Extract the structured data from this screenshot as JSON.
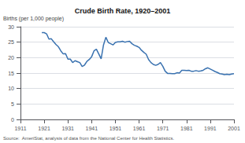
{
  "chart_data": {
    "type": "line",
    "title": "Crude Birth Rate, 1920–2001",
    "ylabel": "Births (per 1,000 people)",
    "annotations": [
      "Source:  AmeriStat, analysis of data from the National Center for Health Statistics."
    ],
    "color": "#3a72b0",
    "grid": true,
    "xlim": [
      1911,
      2001
    ],
    "xticks": [
      1911,
      1921,
      1931,
      1941,
      1951,
      1961,
      1971,
      1981,
      1991,
      2001
    ],
    "ylim": [
      0,
      30
    ],
    "yticks": [
      0,
      5,
      10,
      15,
      20,
      25,
      30
    ],
    "x": [
      1920,
      1921,
      1922,
      1923,
      1924,
      1925,
      1926,
      1927,
      1928,
      1929,
      1930,
      1931,
      1932,
      1933,
      1934,
      1935,
      1936,
      1937,
      1938,
      1939,
      1940,
      1941,
      1942,
      1943,
      1944,
      1945,
      1946,
      1947,
      1948,
      1949,
      1950,
      1951,
      1952,
      1953,
      1954,
      1955,
      1956,
      1957,
      1958,
      1959,
      1960,
      1961,
      1962,
      1963,
      1964,
      1965,
      1966,
      1967,
      1968,
      1969,
      1970,
      1971,
      1972,
      1973,
      1974,
      1975,
      1976,
      1977,
      1978,
      1979,
      1980,
      1981,
      1982,
      1983,
      1984,
      1985,
      1986,
      1987,
      1988,
      1989,
      1990,
      1991,
      1992,
      1993,
      1994,
      1995,
      1996,
      1997,
      1998,
      1999,
      2000,
      2001
    ],
    "values": [
      28.1,
      28.1,
      27.7,
      26.0,
      26.1,
      25.1,
      24.2,
      23.5,
      22.2,
      21.2,
      21.3,
      19.5,
      19.5,
      18.4,
      19.0,
      18.7,
      18.4,
      17.1,
      17.6,
      18.8,
      19.4,
      20.3,
      22.2,
      22.7,
      21.2,
      19.6,
      24.1,
      26.6,
      24.9,
      24.5,
      24.1,
      24.9,
      25.1,
      25.1,
      25.3,
      25.0,
      25.2,
      25.3,
      24.5,
      24.0,
      23.7,
      23.3,
      22.4,
      21.7,
      21.1,
      19.4,
      18.4,
      17.8,
      17.5,
      17.8,
      18.4,
      17.2,
      15.6,
      14.9,
      14.9,
      14.8,
      14.8,
      15.1,
      15.0,
      15.9,
      15.9,
      15.8,
      15.9,
      15.6,
      15.6,
      15.8,
      15.6,
      15.7,
      15.9,
      16.4,
      16.7,
      16.3,
      15.9,
      15.5,
      15.2,
      14.8,
      14.7,
      14.5,
      14.6,
      14.5,
      14.7,
      14.8
    ]
  }
}
